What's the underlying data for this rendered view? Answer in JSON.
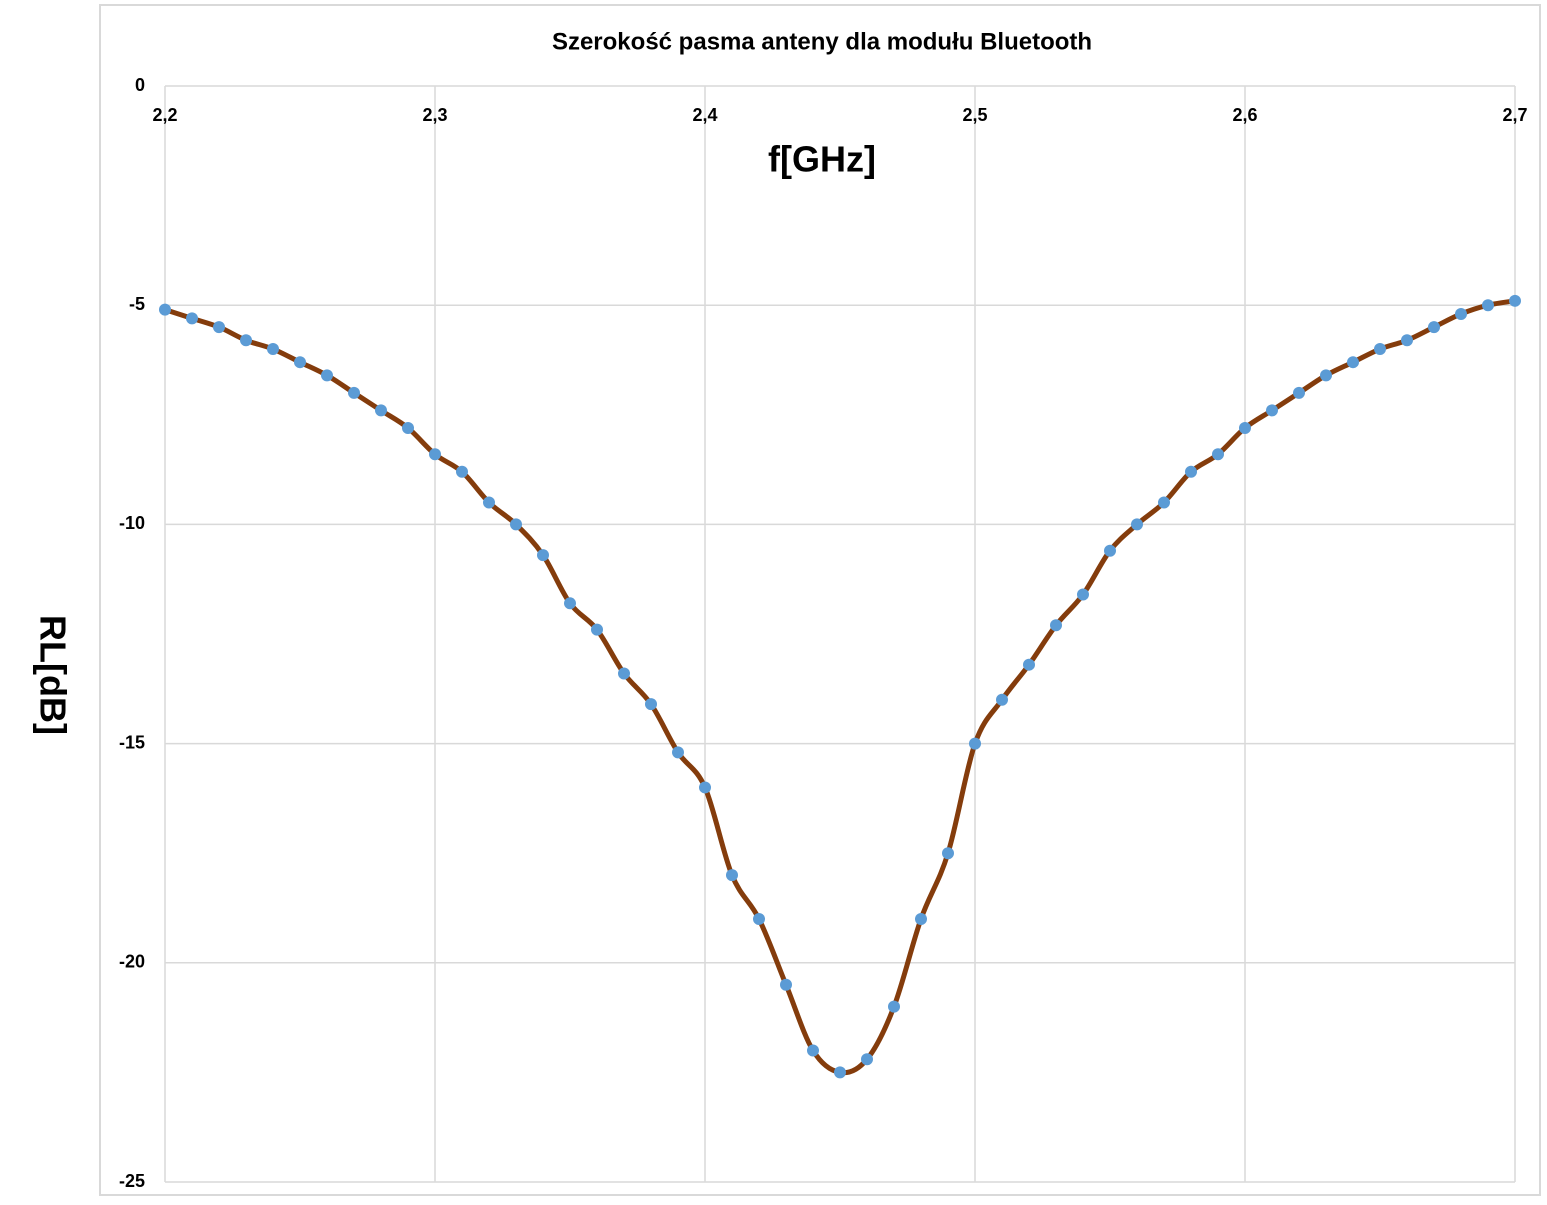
{
  "chart_data": {
    "type": "line",
    "title": "Szerokość pasma anteny dla modułu Bluetooth",
    "x_label": "f[GHz]",
    "y_label": "RL[dB]",
    "x": [
      2.2,
      2.21,
      2.22,
      2.23,
      2.24,
      2.25,
      2.26,
      2.27,
      2.28,
      2.29,
      2.3,
      2.31,
      2.32,
      2.33,
      2.34,
      2.35,
      2.36,
      2.37,
      2.38,
      2.39,
      2.4,
      2.41,
      2.42,
      2.43,
      2.44,
      2.45,
      2.46,
      2.47,
      2.48,
      2.49,
      2.5,
      2.51,
      2.52,
      2.53,
      2.54,
      2.55,
      2.56,
      2.57,
      2.58,
      2.59,
      2.6,
      2.61,
      2.62,
      2.63,
      2.64,
      2.65,
      2.66,
      2.67,
      2.68,
      2.69,
      2.7
    ],
    "values": [
      -5.1,
      -5.3,
      -5.5,
      -5.8,
      -6.0,
      -6.3,
      -6.6,
      -7.0,
      -7.4,
      -7.8,
      -8.4,
      -8.8,
      -9.5,
      -10.0,
      -10.7,
      -11.8,
      -12.4,
      -13.4,
      -14.1,
      -15.2,
      -16.0,
      -18.0,
      -19.0,
      -20.5,
      -22.0,
      -22.5,
      -22.2,
      -21.0,
      -19.0,
      -17.5,
      -15.0,
      -14.0,
      -13.2,
      -12.3,
      -11.6,
      -10.6,
      -10.0,
      -9.5,
      -8.8,
      -8.4,
      -7.8,
      -7.4,
      -7.0,
      -6.6,
      -6.3,
      -6.0,
      -5.8,
      -5.5,
      -5.2,
      -5.0,
      -4.9
    ],
    "color": "#843c0c",
    "marker_color": "#5b9bd5",
    "xlim": [
      2.2,
      2.7
    ],
    "xticks": [
      {
        "value": 2.2,
        "label": "2,2"
      },
      {
        "value": 2.3,
        "label": "2,3"
      },
      {
        "value": 2.4,
        "label": "2,4"
      },
      {
        "value": 2.5,
        "label": "2,5"
      },
      {
        "value": 2.6,
        "label": "2,6"
      },
      {
        "value": 2.7,
        "label": "2,7"
      }
    ],
    "ylim": [
      -25,
      0
    ],
    "yticks": [
      0,
      -5,
      -10,
      -15,
      -20,
      -25
    ],
    "grid": true
  }
}
